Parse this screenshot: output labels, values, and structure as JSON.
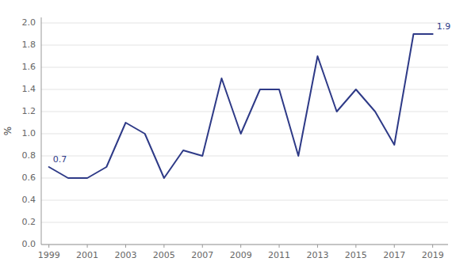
{
  "chart_data": {
    "type": "line",
    "ylabel": "%",
    "x": [
      1999,
      2000,
      2001,
      2002,
      2003,
      2004,
      2005,
      2006,
      2007,
      2008,
      2009,
      2010,
      2011,
      2012,
      2013,
      2014,
      2015,
      2016,
      2017,
      2018,
      2019
    ],
    "values": [
      0.7,
      0.6,
      0.6,
      0.7,
      1.1,
      1.0,
      0.6,
      0.85,
      0.8,
      1.5,
      1.0,
      1.4,
      1.4,
      0.8,
      1.7,
      1.2,
      1.4,
      1.2,
      0.9,
      1.9,
      1.9
    ],
    "color": "#2E3A87",
    "xlim": [
      1998.6,
      2019.8
    ],
    "xticks": [
      1999,
      2001,
      2003,
      2005,
      2007,
      2009,
      2011,
      2013,
      2015,
      2017,
      2019
    ],
    "ylim": [
      0.0,
      2.05
    ],
    "yticks": [
      {
        "value": 0.0,
        "label": "0.0"
      },
      0.2,
      0.4,
      0.6,
      0.8,
      {
        "value": 1.0,
        "label": "1.0"
      },
      1.2,
      1.4,
      1.6,
      1.8,
      {
        "value": 2.0,
        "label": "2.0"
      }
    ],
    "annotations": [
      {
        "text": "0.7",
        "x": 1999,
        "y": 0.7
      },
      {
        "text": "1.9",
        "x": 2019,
        "y": 1.9
      }
    ],
    "grid": true
  }
}
